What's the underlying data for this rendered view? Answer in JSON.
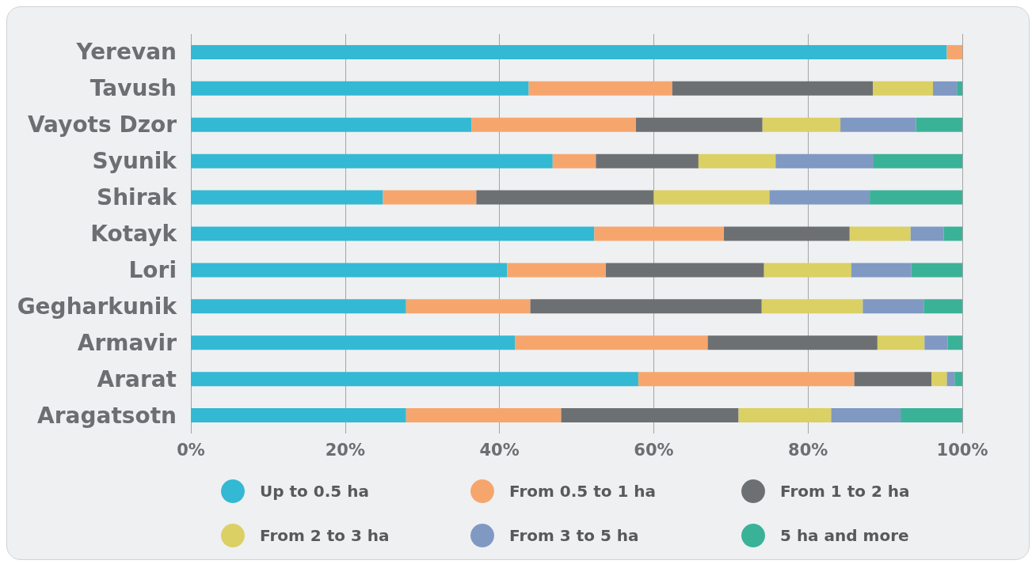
{
  "chart_data": {
    "type": "bar",
    "orientation": "horizontal",
    "stacked": true,
    "categories": [
      "Yerevan",
      "Tavush",
      "Vayots Dzor",
      "Syunik",
      "Shirak",
      "Kotayk",
      "Lori",
      "Gegharkunik",
      "Armavir",
      "Ararat",
      "Aragatsotn"
    ],
    "series": [
      {
        "name": "Up to 0.5 ha",
        "color": "#33b9d3",
        "values": [
          98.0,
          43.8,
          36.4,
          46.9,
          24.9,
          52.3,
          41.0,
          27.9,
          42.0,
          58.0,
          27.9
        ]
      },
      {
        "name": "From 0.5 to 1 ha",
        "color": "#f6a66d",
        "values": [
          2.0,
          18.6,
          21.3,
          5.6,
          12.1,
          16.8,
          12.8,
          16.1,
          25.0,
          28.0,
          20.1
        ]
      },
      {
        "name": "From 1 to 2 ha",
        "color": "#6d7073",
        "values": [
          null,
          26.0,
          16.4,
          13.3,
          23.0,
          16.3,
          20.5,
          30.0,
          22.0,
          10.0,
          23.0
        ]
      },
      {
        "name": "From 2 to 3 ha",
        "color": "#dbd063",
        "values": [
          null,
          7.8,
          10.1,
          10.0,
          15.0,
          7.9,
          11.3,
          13.1,
          6.1,
          2.0,
          12.0
        ]
      },
      {
        "name": "From 3 to 5 ha",
        "color": "#7f99c3",
        "values": [
          null,
          3.1,
          9.8,
          12.7,
          13.0,
          4.3,
          7.8,
          7.9,
          3.0,
          1.0,
          9.0
        ]
      },
      {
        "name": "5 ha and more",
        "color": "#3ab297",
        "values": [
          null,
          0.7,
          6.0,
          11.5,
          12.0,
          2.4,
          6.6,
          5.0,
          1.9,
          1.0,
          8.0
        ]
      }
    ],
    "xlim": [
      0,
      100
    ],
    "xticks": [
      {
        "value": 0,
        "label": "0%"
      },
      {
        "value": 20,
        "label": "20%"
      },
      {
        "value": 40,
        "label": "40%"
      },
      {
        "value": 60,
        "label": "60%"
      },
      {
        "value": 80,
        "label": "80%"
      },
      {
        "value": 100,
        "label": "100%"
      }
    ],
    "grid": "x",
    "legend": "bottom"
  }
}
